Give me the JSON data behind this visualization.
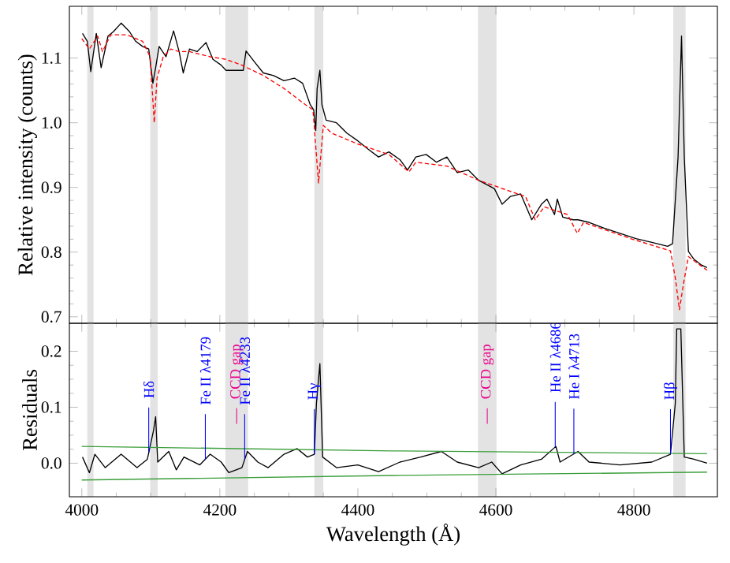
{
  "chart_data": [
    {
      "type": "line",
      "ylabel": "Relative intensity (counts)",
      "xlim": [
        3982,
        4921
      ],
      "ylim": [
        0.69,
        1.18
      ],
      "xticks": [
        4000,
        4200,
        4400,
        4600,
        4800
      ],
      "yticks": [
        0.7,
        0.8,
        0.9,
        {
          "value": 1.0,
          "label": "1.0"
        },
        1.1
      ],
      "tick_labels": "y",
      "bands": [
        {
          "axis": "x",
          "from": 4008,
          "to": 4017,
          "color": "#e3e3e3"
        },
        {
          "axis": "x",
          "from": 4099,
          "to": 4110,
          "color": "#e3e3e3"
        },
        {
          "axis": "x",
          "from": 4208,
          "to": 4241,
          "color": "#e3e3e3"
        },
        {
          "axis": "x",
          "from": 4337,
          "to": 4350,
          "color": "#e3e3e3"
        },
        {
          "axis": "x",
          "from": 4574,
          "to": 4601,
          "color": "#e3e3e3"
        },
        {
          "axis": "x",
          "from": 4857,
          "to": 4875,
          "color": "#e3e3e3"
        }
      ],
      "series": [
        {
          "color": "#000000",
          "line_style": "solid",
          "x": [
            4001,
            4008,
            4013,
            4021,
            4028,
            4038,
            4046,
            4057,
            4069,
            4078,
            4088,
            4097,
            4103,
            4107,
            4112,
            4122,
            4133,
            4141,
            4147,
            4156,
            4167,
            4180,
            4190,
            4202,
            4209,
            4234,
            4238,
            4251,
            4263,
            4278,
            4293,
            4308,
            4320,
            4331,
            4336,
            4339,
            4341,
            4345,
            4348,
            4354,
            4369,
            4384,
            4400,
            4415,
            4430,
            4445,
            4461,
            4472,
            4484,
            4499,
            4514,
            4529,
            4544,
            4560,
            4575,
            4598,
            4609,
            4621,
            4636,
            4652,
            4666,
            4674,
            4685,
            4689,
            4697,
            4712,
            4719,
            4735,
            4757,
            4780,
            4803,
            4826,
            4849,
            4856,
            4864,
            4869,
            4873,
            4879,
            4887,
            4898,
            4906
          ],
          "values": [
            1.138,
            1.126,
            1.079,
            1.138,
            1.085,
            1.134,
            1.141,
            1.154,
            1.141,
            1.126,
            1.118,
            1.114,
            1.061,
            1.085,
            1.118,
            1.102,
            1.142,
            1.11,
            1.077,
            1.114,
            1.11,
            1.124,
            1.098,
            1.089,
            1.081,
            1.081,
            1.111,
            1.093,
            1.077,
            1.073,
            1.065,
            1.069,
            1.061,
            1.028,
            1.02,
            0.988,
            1.053,
            1.081,
            1.028,
            1.004,
            1.0,
            0.984,
            0.972,
            0.959,
            0.947,
            0.955,
            0.943,
            0.927,
            0.947,
            0.951,
            0.939,
            0.947,
            0.923,
            0.927,
            0.911,
            0.898,
            0.874,
            0.886,
            0.89,
            0.85,
            0.874,
            0.882,
            0.858,
            0.882,
            0.854,
            0.85,
            0.85,
            0.846,
            0.837,
            0.829,
            0.821,
            0.815,
            0.809,
            0.813,
            0.947,
            1.134,
            0.947,
            0.801,
            0.789,
            0.78,
            0.776
          ]
        },
        {
          "color": "#ff0000",
          "line_style": "dashed",
          "x": [
            4000,
            4011,
            4023,
            4030,
            4042,
            4065,
            4088,
            4099,
            4105,
            4109,
            4118,
            4129,
            4141,
            4156,
            4186,
            4209,
            4232,
            4263,
            4293,
            4324,
            4335,
            4343,
            4350,
            4362,
            4400,
            4445,
            4474,
            4484,
            4529,
            4575,
            4621,
            4643,
            4657,
            4670,
            4704,
            4718,
            4727,
            4795,
            4853,
            4860,
            4866,
            4872,
            4879,
            4906
          ],
          "values": [
            1.13,
            1.114,
            1.134,
            1.11,
            1.136,
            1.136,
            1.126,
            1.102,
            1.0,
            1.069,
            1.102,
            1.114,
            1.11,
            1.11,
            1.102,
            1.098,
            1.089,
            1.073,
            1.053,
            1.028,
            1.02,
            0.907,
            0.996,
            0.984,
            0.967,
            0.951,
            0.924,
            0.939,
            0.933,
            0.911,
            0.894,
            0.886,
            0.85,
            0.87,
            0.858,
            0.829,
            0.846,
            0.821,
            0.802,
            0.76,
            0.711,
            0.752,
            0.793,
            0.772
          ]
        }
      ]
    },
    {
      "type": "line",
      "xlabel": "Wavelength (Å)",
      "ylabel": "Residuals",
      "xlim": [
        3982,
        4921
      ],
      "ylim": [
        -0.06,
        0.25
      ],
      "xticks": [
        4000,
        4200,
        4400,
        4600,
        4800
      ],
      "yticks": [
        {
          "value": 0.0,
          "label": "0.0"
        },
        0.1,
        0.2
      ],
      "bands": [
        {
          "axis": "x",
          "from": 4008,
          "to": 4017,
          "color": "#e3e3e3"
        },
        {
          "axis": "x",
          "from": 4099,
          "to": 4110,
          "color": "#e3e3e3"
        },
        {
          "axis": "x",
          "from": 4208,
          "to": 4241,
          "color": "#e3e3e3",
          "label": "CCD gap"
        },
        {
          "axis": "x",
          "from": 4337,
          "to": 4350,
          "color": "#e3e3e3"
        },
        {
          "axis": "x",
          "from": 4574,
          "to": 4601,
          "color": "#e3e3e3",
          "label": "CCD gap"
        },
        {
          "axis": "x",
          "from": 4857,
          "to": 4875,
          "color": "#e3e3e3"
        }
      ],
      "annotations": [
        {
          "text": "Hδ",
          "x": 4097,
          "y": 0.019
        },
        {
          "text": "Fe II λ4179",
          "x": 4179,
          "y": 0.007
        },
        {
          "text": "Fe II λ4233",
          "x": 4236,
          "y": 0.007
        },
        {
          "text": "Hγ",
          "x": 4337,
          "y": 0.016
        },
        {
          "text": "He II λ4686",
          "x": 4686,
          "y": 0.029
        },
        {
          "text": "He I λ4713",
          "x": 4713,
          "y": 0.017
        },
        {
          "text": "Hβ",
          "x": 4853,
          "y": 0.016
        }
      ],
      "series": [
        {
          "color": "#000000",
          "line_style": "solid",
          "x": [
            4001,
            4011,
            4019,
            4034,
            4057,
            4080,
            4095,
            4104,
            4107,
            4110,
            4126,
            4137,
            4148,
            4171,
            4186,
            4202,
            4213,
            4232,
            4240,
            4255,
            4270,
            4293,
            4312,
            4327,
            4337,
            4340,
            4345,
            4349,
            4369,
            4400,
            4430,
            4461,
            4491,
            4521,
            4544,
            4575,
            4594,
            4609,
            4636,
            4666,
            4687,
            4693,
            4719,
            4735,
            4780,
            4826,
            4853,
            4860,
            4862,
            4868,
            4873,
            4887,
            4906
          ],
          "values": [
            0.011,
            -0.017,
            0.016,
            -0.008,
            0.016,
            -0.008,
            0.007,
            0.059,
            0.083,
            0.002,
            0.021,
            -0.012,
            0.011,
            -0.003,
            0.016,
            0.002,
            -0.017,
            -0.008,
            0.021,
            0.002,
            -0.008,
            0.016,
            0.026,
            0.011,
            0.016,
            0.107,
            0.178,
            0.011,
            -0.008,
            -0.003,
            -0.015,
            0.002,
            0.011,
            0.021,
            0.002,
            -0.008,
            0.002,
            -0.019,
            -0.003,
            0.007,
            0.03,
            0.002,
            0.021,
            0.002,
            -0.003,
            0.002,
            0.016,
            0.107,
            0.24,
            0.24,
            0.011,
            0.007,
            0.0
          ]
        },
        {
          "color": "#3a9e3a",
          "line_style": "solid",
          "x": [
            4000,
            4450,
            4906
          ],
          "values": [
            0.03,
            0.022,
            0.017
          ]
        },
        {
          "color": "#3a9e3a",
          "line_style": "solid",
          "x": [
            4000,
            4450,
            4906
          ],
          "values": [
            -0.03,
            -0.022,
            -0.016
          ]
        }
      ]
    }
  ]
}
